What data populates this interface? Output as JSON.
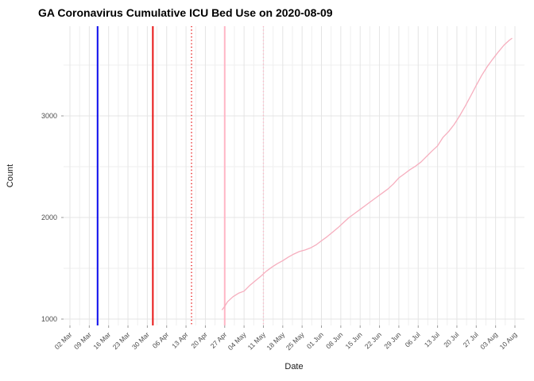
{
  "chart_data": {
    "type": "line",
    "title": "GA Coronavirus Cumulative ICU Bed Use on 2020-08-09",
    "xlabel": "Date",
    "ylabel": "Count",
    "x_tick_labels": [
      "02 Mar",
      "09 Mar",
      "16 Mar",
      "23 Mar",
      "30 Mar",
      "06 Apr",
      "13 Apr",
      "20 Apr",
      "27 Apr",
      "04 May",
      "11 May",
      "18 May",
      "25 May",
      "01 Jun",
      "08 Jun",
      "15 Jun",
      "22 Jun",
      "29 Jun",
      "06 Jul",
      "13 Jul",
      "20 Jul",
      "27 Jul",
      "03 Aug",
      "10 Aug"
    ],
    "x_range": [
      "2020-03-02",
      "2020-08-10"
    ],
    "y_ticks": [
      1000,
      2000,
      3000
    ],
    "y_minor_ticks": [
      1500,
      2500,
      3500
    ],
    "ylim": [
      937,
      3890
    ],
    "grid": true,
    "legend": false,
    "colors": {
      "series_line": "#f6aebe",
      "vline_blue": "#0d0dee",
      "vline_red": "#e81414",
      "vline_pink": "#ffb6c6",
      "grid_major": "#e4e4e4",
      "grid_minor": "#efefef",
      "tick_mark": "#9a9a9a",
      "tick_text": "#4d4d4d",
      "axis_title_text": "#1a1a1a"
    },
    "vlines": [
      {
        "date": "2020-03-12",
        "color": "#0d0dee",
        "style": "solid"
      },
      {
        "date": "2020-04-01",
        "color": "#e81414",
        "style": "solid"
      },
      {
        "date": "2020-04-15",
        "color": "#e81414",
        "style": "dotted"
      },
      {
        "date": "2020-04-27",
        "color": "#ffb6c6",
        "style": "solid"
      },
      {
        "date": "2020-05-11",
        "color": "#ffb6c6",
        "style": "dotted"
      }
    ],
    "series": [
      {
        "name": "cumulative-icu-bed-use",
        "points": [
          [
            "2020-04-26",
            1090
          ],
          [
            "2020-04-27",
            1125
          ],
          [
            "2020-04-28",
            1170
          ],
          [
            "2020-04-30",
            1220
          ],
          [
            "2020-05-02",
            1255
          ],
          [
            "2020-05-04",
            1275
          ],
          [
            "2020-05-06",
            1330
          ],
          [
            "2020-05-08",
            1375
          ],
          [
            "2020-05-10",
            1420
          ],
          [
            "2020-05-12",
            1470
          ],
          [
            "2020-05-14",
            1510
          ],
          [
            "2020-05-16",
            1545
          ],
          [
            "2020-05-18",
            1575
          ],
          [
            "2020-05-20",
            1610
          ],
          [
            "2020-05-22",
            1640
          ],
          [
            "2020-05-24",
            1665
          ],
          [
            "2020-05-26",
            1680
          ],
          [
            "2020-05-28",
            1700
          ],
          [
            "2020-05-30",
            1730
          ],
          [
            "2020-06-01",
            1770
          ],
          [
            "2020-06-03",
            1810
          ],
          [
            "2020-06-05",
            1855
          ],
          [
            "2020-06-07",
            1900
          ],
          [
            "2020-06-09",
            1950
          ],
          [
            "2020-06-11",
            2000
          ],
          [
            "2020-06-13",
            2040
          ],
          [
            "2020-06-15",
            2080
          ],
          [
            "2020-06-17",
            2120
          ],
          [
            "2020-06-19",
            2160
          ],
          [
            "2020-06-21",
            2200
          ],
          [
            "2020-06-23",
            2240
          ],
          [
            "2020-06-25",
            2280
          ],
          [
            "2020-06-27",
            2330
          ],
          [
            "2020-06-29",
            2390
          ],
          [
            "2020-07-01",
            2430
          ],
          [
            "2020-07-03",
            2470
          ],
          [
            "2020-07-05",
            2505
          ],
          [
            "2020-07-07",
            2545
          ],
          [
            "2020-07-09",
            2600
          ],
          [
            "2020-07-11",
            2655
          ],
          [
            "2020-07-13",
            2705
          ],
          [
            "2020-07-15",
            2790
          ],
          [
            "2020-07-17",
            2845
          ],
          [
            "2020-07-19",
            2915
          ],
          [
            "2020-07-21",
            3000
          ],
          [
            "2020-07-23",
            3095
          ],
          [
            "2020-07-25",
            3195
          ],
          [
            "2020-07-27",
            3300
          ],
          [
            "2020-07-29",
            3400
          ],
          [
            "2020-07-31",
            3485
          ],
          [
            "2020-08-02",
            3560
          ],
          [
            "2020-08-04",
            3630
          ],
          [
            "2020-08-06",
            3695
          ],
          [
            "2020-08-08",
            3745
          ],
          [
            "2020-08-09",
            3765
          ]
        ]
      }
    ]
  }
}
